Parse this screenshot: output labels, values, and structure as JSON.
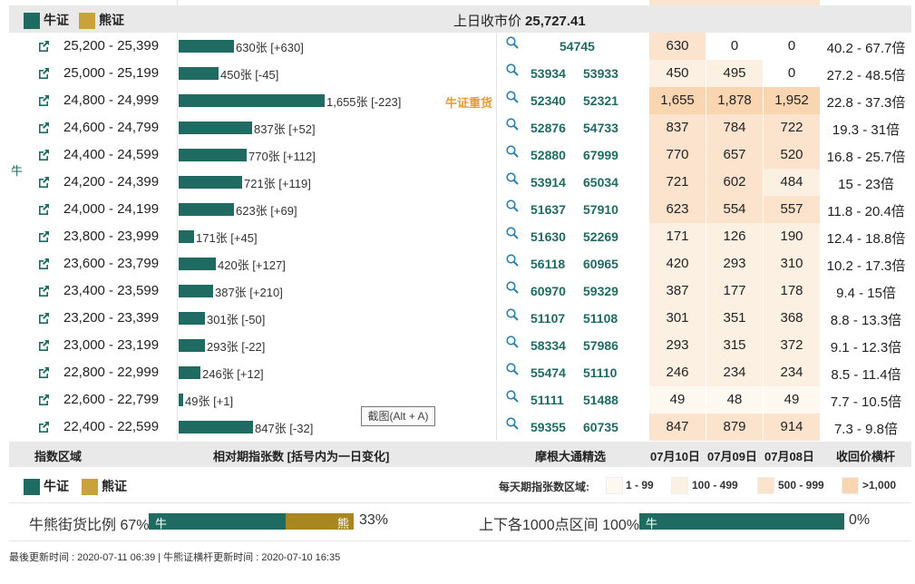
{
  "header": {
    "bull_label": "牛证",
    "bear_label": "熊证",
    "prev_close_label": "上日收市价",
    "prev_close_value": "25,727.41"
  },
  "side_label": "牛",
  "heavy_label": "牛证重货",
  "rows": [
    {
      "range": "25,200 - 25,399",
      "bar_label": "630张 [+630]",
      "bar_value": 630,
      "code1": "",
      "code2": "54745",
      "d10": "630",
      "d09": "0",
      "d08": "0",
      "leverage": "40.2 - 67.7倍"
    },
    {
      "range": "25,000 - 25,199",
      "bar_label": "450张 [-45]",
      "bar_value": 450,
      "code1": "53934",
      "code2": "53933",
      "d10": "450",
      "d09": "495",
      "d08": "0",
      "leverage": "27.2 - 48.5倍"
    },
    {
      "range": "24,800 - 24,999",
      "bar_label": "1,655张 [-223]",
      "bar_value": 1655,
      "code1": "52340",
      "code2": "52321",
      "d10": "1,655",
      "d09": "1,878",
      "d08": "1,952",
      "leverage": "22.8 - 37.3倍"
    },
    {
      "range": "24,600 - 24,799",
      "bar_label": "837张 [+52]",
      "bar_value": 837,
      "code1": "52876",
      "code2": "54733",
      "d10": "837",
      "d09": "784",
      "d08": "722",
      "leverage": "19.3 - 31倍"
    },
    {
      "range": "24,400 - 24,599",
      "bar_label": "770张 [+112]",
      "bar_value": 770,
      "code1": "52880",
      "code2": "67999",
      "d10": "770",
      "d09": "657",
      "d08": "520",
      "leverage": "16.8 - 25.7倍"
    },
    {
      "range": "24,200 - 24,399",
      "bar_label": "721张 [+119]",
      "bar_value": 721,
      "code1": "53914",
      "code2": "65034",
      "d10": "721",
      "d09": "602",
      "d08": "484",
      "leverage": "15 - 23倍"
    },
    {
      "range": "24,000 - 24,199",
      "bar_label": "623张 [+69]",
      "bar_value": 623,
      "code1": "51637",
      "code2": "57910",
      "d10": "623",
      "d09": "554",
      "d08": "557",
      "leverage": "11.8 - 20.4倍"
    },
    {
      "range": "23,800 - 23,999",
      "bar_label": "171张 [+45]",
      "bar_value": 171,
      "code1": "51630",
      "code2": "52269",
      "d10": "171",
      "d09": "126",
      "d08": "190",
      "leverage": "12.4 - 18.8倍"
    },
    {
      "range": "23,600 - 23,799",
      "bar_label": "420张 [+127]",
      "bar_value": 420,
      "code1": "56118",
      "code2": "60965",
      "d10": "420",
      "d09": "293",
      "d08": "310",
      "leverage": "10.2 - 17.3倍"
    },
    {
      "range": "23,400 - 23,599",
      "bar_label": "387张 [+210]",
      "bar_value": 387,
      "code1": "60970",
      "code2": "59329",
      "d10": "387",
      "d09": "177",
      "d08": "178",
      "leverage": "9.4 - 15倍"
    },
    {
      "range": "23,200 - 23,399",
      "bar_label": "301张 [-50]",
      "bar_value": 301,
      "code1": "51107",
      "code2": "51108",
      "d10": "301",
      "d09": "351",
      "d08": "368",
      "leverage": "8.8 - 13.3倍"
    },
    {
      "range": "23,000 - 23,199",
      "bar_label": "293张 [-22]",
      "bar_value": 293,
      "code1": "58334",
      "code2": "57986",
      "d10": "293",
      "d09": "315",
      "d08": "372",
      "leverage": "9.1 - 12.3倍"
    },
    {
      "range": "22,800 - 22,999",
      "bar_label": "246张 [+12]",
      "bar_value": 246,
      "code1": "55474",
      "code2": "51110",
      "d10": "246",
      "d09": "234",
      "d08": "234",
      "leverage": "8.5 - 11.4倍"
    },
    {
      "range": "22,600 - 22,799",
      "bar_label": "49张 [+1]",
      "bar_value": 49,
      "code1": "51111",
      "code2": "51488",
      "d10": "49",
      "d09": "48",
      "d08": "49",
      "leverage": "7.7 - 10.5倍"
    },
    {
      "range": "22,400 - 22,599",
      "bar_label": "847张 [-32]",
      "bar_value": 847,
      "code1": "59355",
      "code2": "60735",
      "d10": "847",
      "d09": "879",
      "d08": "914",
      "leverage": "7.3 - 9.8倍"
    }
  ],
  "footer_headers": {
    "range": "指数区域",
    "relative": "相对期指张数 [括号内为一日变化]",
    "picks": "摩根大通精选",
    "d10": "07月10日",
    "d09": "07月09日",
    "d08": "07月08日",
    "leverage": "收回价横杆"
  },
  "legend": {
    "bull_label": "牛证",
    "bear_label": "熊证",
    "range_title": "每天期指张数区域:",
    "k1": "1 - 99",
    "k2": "100 - 499",
    "k3": "500 - 999",
    "k4": ">1,000"
  },
  "heat_colors": [
    "#fdf9f0",
    "#fcf0e2",
    "#fbe3cd",
    "#fad5b2"
  ],
  "ratio": {
    "label": "牛熊街货比例",
    "bull_pct": "67%",
    "bull_fraction": 0.67,
    "bull_tag": "牛",
    "bear_tag": "熊",
    "bear_pct": "33%",
    "label2": "上下各1000点区间",
    "pct2": "100%",
    "fraction2": 1.0,
    "tag2": "牛",
    "pct3": "0%"
  },
  "tooltip": "截图(Alt + A)",
  "updated": "最後更新时间 : 2020-07-11 06:39   |   牛熊证横杆更新时间 : 2020-07-10 16:35",
  "colors": {
    "bull": "#1f6b62",
    "bear": "#c9a23c",
    "heavy": "#e89b2e"
  }
}
